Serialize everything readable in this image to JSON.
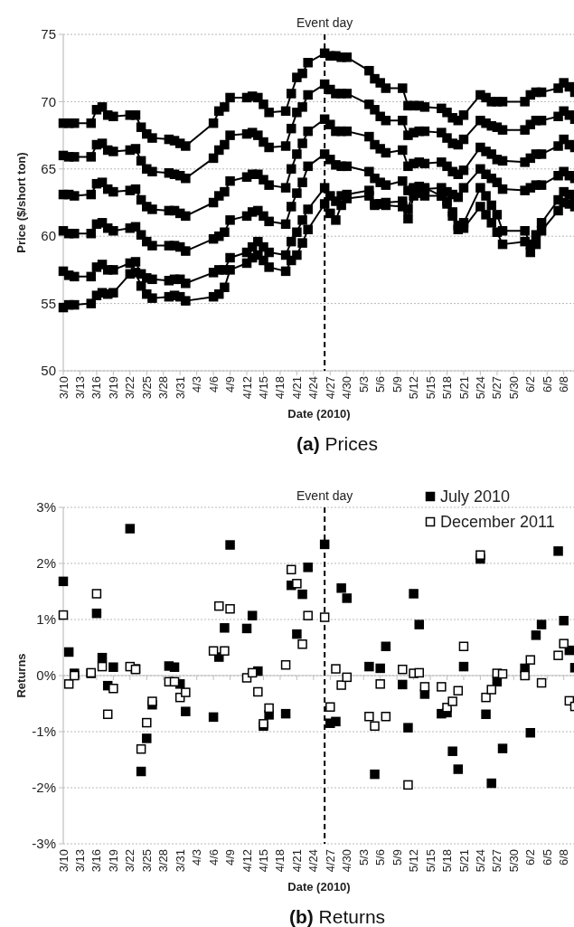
{
  "chart_data": [
    {
      "type": "line",
      "title": "(a) Prices",
      "xlabel": "Date (2010)",
      "ylabel": "Price ($/short ton)",
      "marker": "square",
      "grid": "y",
      "legend": false,
      "x": [
        "2010-03-10",
        "2010-03-11",
        "2010-03-12",
        "2010-03-15",
        "2010-03-16",
        "2010-03-17",
        "2010-03-18",
        "2010-03-19",
        "2010-03-22",
        "2010-03-23",
        "2010-03-24",
        "2010-03-25",
        "2010-03-26",
        "2010-03-29",
        "2010-03-30",
        "2010-03-31",
        "2010-04-01",
        "2010-04-06",
        "2010-04-07",
        "2010-04-08",
        "2010-04-09",
        "2010-04-12",
        "2010-04-13",
        "2010-04-14",
        "2010-04-15",
        "2010-04-16",
        "2010-04-19",
        "2010-04-20",
        "2010-04-21",
        "2010-04-22",
        "2010-04-23",
        "2010-04-26",
        "2010-04-27",
        "2010-04-28",
        "2010-04-29",
        "2010-04-30",
        "2010-05-04",
        "2010-05-05",
        "2010-05-06",
        "2010-05-07",
        "2010-05-10",
        "2010-05-11",
        "2010-05-12",
        "2010-05-13",
        "2010-05-14",
        "2010-05-17",
        "2010-05-18",
        "2010-05-19",
        "2010-05-20",
        "2010-05-21",
        "2010-05-24",
        "2010-05-25",
        "2010-05-26",
        "2010-05-27",
        "2010-05-28",
        "2010-06-01",
        "2010-06-02",
        "2010-06-03",
        "2010-06-04",
        "2010-06-07",
        "2010-06-08",
        "2010-06-09",
        "2010-06-10"
      ],
      "xlim": [
        "2010-03-10",
        "2010-06-10"
      ],
      "xticks": [
        {
          "value": "2010-03-10",
          "label": "3/10"
        },
        {
          "value": "2010-03-13",
          "label": "3/13"
        },
        {
          "value": "2010-03-16",
          "label": "3/16"
        },
        {
          "value": "2010-03-19",
          "label": "3/19"
        },
        {
          "value": "2010-03-22",
          "label": "3/22"
        },
        {
          "value": "2010-03-25",
          "label": "3/25"
        },
        {
          "value": "2010-03-28",
          "label": "3/28"
        },
        {
          "value": "2010-03-31",
          "label": "3/31"
        },
        {
          "value": "2010-04-03",
          "label": "4/3"
        },
        {
          "value": "2010-04-06",
          "label": "4/6"
        },
        {
          "value": "2010-04-09",
          "label": "4/9"
        },
        {
          "value": "2010-04-12",
          "label": "4/12"
        },
        {
          "value": "2010-04-15",
          "label": "4/15"
        },
        {
          "value": "2010-04-18",
          "label": "4/18"
        },
        {
          "value": "2010-04-21",
          "label": "4/21"
        },
        {
          "value": "2010-04-24",
          "label": "4/24"
        },
        {
          "value": "2010-04-27",
          "label": "4/27"
        },
        {
          "value": "2010-04-30",
          "label": "4/30"
        },
        {
          "value": "2010-05-03",
          "label": "5/3"
        },
        {
          "value": "2010-05-06",
          "label": "5/6"
        },
        {
          "value": "2010-05-09",
          "label": "5/9"
        },
        {
          "value": "2010-05-12",
          "label": "5/12"
        },
        {
          "value": "2010-05-15",
          "label": "5/15"
        },
        {
          "value": "2010-05-18",
          "label": "5/18"
        },
        {
          "value": "2010-05-21",
          "label": "5/21"
        },
        {
          "value": "2010-05-24",
          "label": "5/24"
        },
        {
          "value": "2010-05-27",
          "label": "5/27"
        },
        {
          "value": "2010-05-30",
          "label": "5/30"
        },
        {
          "value": "2010-06-02",
          "label": "6/2"
        },
        {
          "value": "2010-06-05",
          "label": "6/5"
        },
        {
          "value": "2010-06-08",
          "label": "6/8"
        }
      ],
      "ylim": [
        50,
        75
      ],
      "yticks": [
        50,
        55,
        60,
        65,
        70,
        75
      ],
      "ref_lines": [
        {
          "axis": "x",
          "value": "2010-04-26",
          "label": "Event day",
          "line_style": "dashed",
          "color": "#000000"
        }
      ],
      "series": [
        {
          "color": "#000000",
          "values": [
            68.4,
            68.4,
            68.4,
            68.4,
            69.4,
            69.6,
            69.0,
            68.9,
            69.0,
            69.0,
            68.1,
            67.6,
            67.3,
            67.2,
            67.1,
            66.9,
            66.7,
            68.4,
            69.3,
            69.6,
            70.3,
            70.3,
            70.4,
            70.3,
            69.8,
            69.2,
            69.3,
            70.6,
            71.8,
            72.1,
            72.9,
            73.6,
            73.4,
            73.4,
            73.3,
            73.3,
            72.3,
            71.7,
            71.4,
            71.0,
            71.0,
            69.7,
            69.7,
            69.7,
            69.6,
            69.5,
            69.2,
            68.8,
            68.6,
            69.0,
            70.5,
            70.3,
            70.0,
            70.0,
            70.0,
            70.0,
            70.5,
            70.7,
            70.7,
            71.0,
            71.4,
            71.1,
            70.7
          ]
        },
        {
          "color": "#000000",
          "values": [
            66.0,
            65.9,
            65.9,
            65.9,
            66.8,
            66.9,
            66.4,
            66.3,
            66.4,
            66.5,
            65.6,
            65.0,
            64.8,
            64.7,
            64.6,
            64.5,
            64.3,
            65.8,
            66.4,
            66.8,
            67.5,
            67.6,
            67.7,
            67.5,
            67.0,
            66.6,
            66.7,
            68.0,
            69.2,
            69.6,
            70.5,
            71.3,
            70.9,
            70.6,
            70.6,
            70.6,
            69.8,
            69.4,
            68.9,
            68.6,
            68.6,
            67.5,
            67.7,
            67.8,
            67.8,
            67.7,
            67.3,
            66.9,
            66.8,
            67.2,
            68.6,
            68.4,
            68.2,
            68.1,
            67.9,
            67.9,
            68.3,
            68.6,
            68.6,
            68.9,
            69.3,
            69.0,
            68.7
          ]
        },
        {
          "color": "#000000",
          "values": [
            63.1,
            63.1,
            63.0,
            63.1,
            63.9,
            64.0,
            63.5,
            63.3,
            63.4,
            63.5,
            62.7,
            62.2,
            62.0,
            61.9,
            61.9,
            61.7,
            61.5,
            62.5,
            63.0,
            63.3,
            64.1,
            64.4,
            64.6,
            64.6,
            64.2,
            63.8,
            63.6,
            65.0,
            66.1,
            66.9,
            67.8,
            68.7,
            68.3,
            67.8,
            67.8,
            67.8,
            67.4,
            66.8,
            66.5,
            66.2,
            66.4,
            65.2,
            65.4,
            65.5,
            65.4,
            65.5,
            65.2,
            64.8,
            64.6,
            64.9,
            66.6,
            66.3,
            66.1,
            65.7,
            65.6,
            65.5,
            65.8,
            66.1,
            66.1,
            66.7,
            67.2,
            66.8,
            66.6
          ]
        },
        {
          "color": "#000000",
          "values": [
            60.4,
            60.2,
            60.2,
            60.2,
            60.9,
            61.0,
            60.6,
            60.4,
            60.6,
            60.7,
            60.1,
            59.6,
            59.3,
            59.3,
            59.3,
            59.2,
            58.9,
            59.8,
            60.0,
            60.3,
            61.2,
            61.5,
            61.8,
            61.9,
            61.5,
            61.1,
            60.9,
            62.2,
            63.2,
            64.0,
            65.2,
            66.1,
            65.7,
            65.3,
            65.2,
            65.2,
            64.8,
            64.3,
            64.0,
            63.8,
            64.1,
            63.4,
            63.6,
            63.6,
            63.5,
            63.6,
            63.3,
            63.1,
            62.9,
            63.6,
            65.0,
            64.6,
            64.3,
            64.0,
            63.5,
            63.4,
            63.6,
            63.8,
            63.8,
            64.5,
            64.8,
            64.5,
            64.3
          ]
        },
        {
          "color": "#000000",
          "values": [
            57.4,
            57.1,
            57.0,
            57.0,
            57.7,
            57.9,
            57.5,
            57.5,
            58.0,
            58.1,
            57.2,
            56.9,
            56.8,
            56.7,
            56.8,
            56.8,
            56.5,
            57.3,
            57.5,
            57.5,
            58.4,
            58.8,
            59.2,
            59.6,
            59.2,
            58.8,
            58.6,
            59.6,
            60.3,
            61.2,
            62.0,
            63.6,
            63.0,
            62.6,
            63.0,
            63.1,
            63.4,
            62.4,
            62.4,
            62.5,
            62.6,
            62.0,
            63.5,
            63.7,
            63.6,
            63.0,
            62.6,
            61.8,
            60.8,
            61.0,
            63.6,
            63.0,
            62.3,
            61.6,
            60.4,
            60.4,
            59.4,
            60.1,
            61.0,
            62.7,
            63.3,
            63.1,
            62.7
          ]
        },
        {
          "color": "#000000",
          "values": [
            54.7,
            54.9,
            54.9,
            55.0,
            55.6,
            55.8,
            55.7,
            55.8,
            57.2,
            57.3,
            56.3,
            55.7,
            55.4,
            55.5,
            55.6,
            55.5,
            55.2,
            55.5,
            55.7,
            56.2,
            57.5,
            58.0,
            58.4,
            58.6,
            58.2,
            57.7,
            57.4,
            58.2,
            58.6,
            59.5,
            60.5,
            62.4,
            61.7,
            61.2,
            62.3,
            62.8,
            63.0,
            62.3,
            62.4,
            62.3,
            62.2,
            61.3,
            63.0,
            63.2,
            63.0,
            63.0,
            62.4,
            61.5,
            60.5,
            60.6,
            62.2,
            61.6,
            61.0,
            60.3,
            59.4,
            59.6,
            58.8,
            59.4,
            60.4,
            61.9,
            62.5,
            62.4,
            62.2
          ]
        }
      ]
    },
    {
      "type": "scatter",
      "title": "(b) Returns",
      "xlabel": "Date (2010)",
      "ylabel": "Returns",
      "marker": "square",
      "grid": "y",
      "legend": "top right",
      "x": [
        "2010-03-10",
        "2010-03-11",
        "2010-03-12",
        "2010-03-15",
        "2010-03-16",
        "2010-03-17",
        "2010-03-18",
        "2010-03-19",
        "2010-03-22",
        "2010-03-23",
        "2010-03-24",
        "2010-03-25",
        "2010-03-26",
        "2010-03-29",
        "2010-03-30",
        "2010-03-31",
        "2010-04-01",
        "2010-04-06",
        "2010-04-07",
        "2010-04-08",
        "2010-04-09",
        "2010-04-12",
        "2010-04-13",
        "2010-04-14",
        "2010-04-15",
        "2010-04-16",
        "2010-04-19",
        "2010-04-20",
        "2010-04-21",
        "2010-04-22",
        "2010-04-23",
        "2010-04-26",
        "2010-04-27",
        "2010-04-28",
        "2010-04-29",
        "2010-04-30",
        "2010-05-04",
        "2010-05-05",
        "2010-05-06",
        "2010-05-07",
        "2010-05-10",
        "2010-05-11",
        "2010-05-12",
        "2010-05-13",
        "2010-05-14",
        "2010-05-17",
        "2010-05-18",
        "2010-05-19",
        "2010-05-20",
        "2010-05-21",
        "2010-05-24",
        "2010-05-25",
        "2010-05-26",
        "2010-05-27",
        "2010-05-28",
        "2010-06-01",
        "2010-06-02",
        "2010-06-03",
        "2010-06-04",
        "2010-06-07",
        "2010-06-08",
        "2010-06-09",
        "2010-06-10"
      ],
      "xlim": [
        "2010-03-10",
        "2010-06-10"
      ],
      "xticks": [
        {
          "value": "2010-03-10",
          "label": "3/10"
        },
        {
          "value": "2010-03-13",
          "label": "3/13"
        },
        {
          "value": "2010-03-16",
          "label": "3/16"
        },
        {
          "value": "2010-03-19",
          "label": "3/19"
        },
        {
          "value": "2010-03-22",
          "label": "3/22"
        },
        {
          "value": "2010-03-25",
          "label": "3/25"
        },
        {
          "value": "2010-03-28",
          "label": "3/28"
        },
        {
          "value": "2010-03-31",
          "label": "3/31"
        },
        {
          "value": "2010-04-03",
          "label": "4/3"
        },
        {
          "value": "2010-04-06",
          "label": "4/6"
        },
        {
          "value": "2010-04-09",
          "label": "4/9"
        },
        {
          "value": "2010-04-12",
          "label": "4/12"
        },
        {
          "value": "2010-04-15",
          "label": "4/15"
        },
        {
          "value": "2010-04-18",
          "label": "4/18"
        },
        {
          "value": "2010-04-21",
          "label": "4/21"
        },
        {
          "value": "2010-04-24",
          "label": "4/24"
        },
        {
          "value": "2010-04-27",
          "label": "4/27"
        },
        {
          "value": "2010-04-30",
          "label": "4/30"
        },
        {
          "value": "2010-05-03",
          "label": "5/3"
        },
        {
          "value": "2010-05-06",
          "label": "5/6"
        },
        {
          "value": "2010-05-09",
          "label": "5/9"
        },
        {
          "value": "2010-05-12",
          "label": "5/12"
        },
        {
          "value": "2010-05-15",
          "label": "5/15"
        },
        {
          "value": "2010-05-18",
          "label": "5/18"
        },
        {
          "value": "2010-05-21",
          "label": "5/21"
        },
        {
          "value": "2010-05-24",
          "label": "5/24"
        },
        {
          "value": "2010-05-27",
          "label": "5/27"
        },
        {
          "value": "2010-05-30",
          "label": "5/30"
        },
        {
          "value": "2010-06-02",
          "label": "6/2"
        },
        {
          "value": "2010-06-05",
          "label": "6/5"
        },
        {
          "value": "2010-06-08",
          "label": "6/8"
        }
      ],
      "ylim": [
        -3,
        3
      ],
      "yticks": [
        {
          "value": -3,
          "label": "-3%"
        },
        {
          "value": -2,
          "label": "-2%"
        },
        {
          "value": -1,
          "label": "-1%"
        },
        {
          "value": 0,
          "label": "0%"
        },
        {
          "value": 1,
          "label": "1%"
        },
        {
          "value": 2,
          "label": "2%"
        },
        {
          "value": 3,
          "label": "3%"
        }
      ],
      "ref_lines": [
        {
          "axis": "x",
          "value": "2010-04-26",
          "label": "Event day",
          "line_style": "dashed",
          "color": "#000000"
        }
      ],
      "series": [
        {
          "name": "July 2010",
          "color": "#000000",
          "values": [
            1.68,
            0.42,
            0.04,
            0.04,
            1.11,
            0.32,
            -0.18,
            0.15,
            2.62,
            0.12,
            -1.71,
            -1.12,
            -0.52,
            0.17,
            0.15,
            -0.15,
            -0.64,
            -0.74,
            0.33,
            0.85,
            2.33,
            0.84,
            1.07,
            0.08,
            -0.9,
            -0.7,
            -0.68,
            1.61,
            0.74,
            1.45,
            1.93,
            2.34,
            -0.85,
            -0.82,
            1.56,
            1.38,
            0.16,
            -1.76,
            0.13,
            0.52,
            -0.16,
            -0.93,
            1.46,
            0.91,
            -0.33,
            -0.68,
            -0.66,
            -1.35,
            -1.67,
            0.16,
            2.08,
            -0.69,
            -1.92,
            -0.11,
            -1.3,
            0.13,
            -1.02,
            0.72,
            0.91,
            2.22,
            0.98,
            0.45,
            0.14
          ]
        },
        {
          "name": "December 2011",
          "color": "#ffffff",
          "values": [
            1.08,
            -0.15,
            0.0,
            0.05,
            1.46,
            0.16,
            -0.69,
            -0.23,
            0.16,
            0.11,
            -1.31,
            -0.84,
            -0.46,
            -0.11,
            -0.11,
            -0.39,
            -0.3,
            0.44,
            1.24,
            0.44,
            1.19,
            -0.04,
            0.05,
            -0.29,
            -0.86,
            -0.58,
            0.19,
            1.89,
            1.64,
            0.56,
            1.07,
            1.04,
            -0.56,
            0.12,
            -0.17,
            -0.03,
            -0.73,
            -0.9,
            -0.15,
            -0.73,
            0.11,
            -1.95,
            0.04,
            0.05,
            -0.2,
            -0.2,
            -0.57,
            -0.46,
            -0.27,
            0.52,
            2.15,
            -0.39,
            -0.25,
            0.04,
            0.03,
            0.0,
            0.28,
            null,
            -0.13,
            0.36,
            0.57,
            -0.45,
            -0.55
          ]
        }
      ]
    }
  ]
}
